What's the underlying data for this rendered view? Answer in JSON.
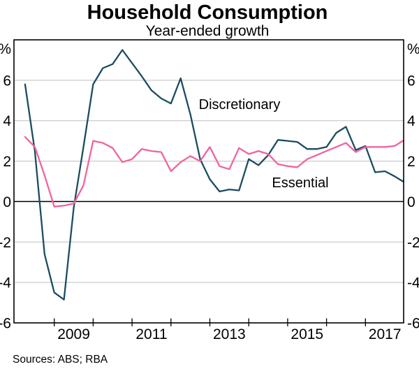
{
  "title": "Household Consumption",
  "subtitle": "Year-ended growth",
  "source_note": "Sources: ABS; RBA",
  "chart_data": {
    "type": "line",
    "x_start_year": 2008,
    "x_period": "quarterly",
    "x_axis": {
      "tick_years": [
        2009,
        2010,
        2011,
        2012,
        2013,
        2014,
        2015,
        2016,
        2017
      ],
      "label_years": [
        2009,
        2011,
        2013,
        2015,
        2017
      ],
      "range_years": [
        2007.95,
        2018.0
      ]
    },
    "y_axis": {
      "unit": "%",
      "ticks": [
        6,
        4,
        2,
        0,
        -2,
        -4,
        -6
      ],
      "range": [
        -6,
        8
      ],
      "grid": true
    },
    "colors": {
      "discretionary": "#1b4c61",
      "essential": "#f0649f",
      "grid": "#bfbfbf",
      "zero_line": "#000000",
      "frame": "#000000"
    },
    "series": [
      {
        "name": "Discretionary",
        "color_key": "discretionary",
        "values": [
          5.8,
          2.5,
          -2.6,
          -4.5,
          -4.85,
          -0.3,
          2.7,
          5.8,
          6.6,
          6.8,
          7.5,
          6.85,
          6.2,
          5.5,
          5.1,
          4.85,
          6.1,
          4.3,
          2.1,
          1.1,
          0.5,
          0.6,
          0.55,
          2.1,
          1.8,
          2.3,
          3.05,
          3.0,
          2.95,
          2.6,
          2.6,
          2.7,
          3.4,
          3.7,
          2.55,
          2.75,
          1.45,
          1.5,
          1.25,
          1.0
        ]
      },
      {
        "name": "Essential",
        "color_key": "essential",
        "values": [
          3.2,
          2.7,
          1.3,
          -0.25,
          -0.2,
          -0.1,
          0.8,
          3.0,
          2.9,
          2.65,
          1.95,
          2.1,
          2.6,
          2.5,
          2.45,
          1.5,
          1.95,
          2.25,
          2.0,
          2.7,
          1.75,
          1.6,
          2.65,
          2.35,
          2.5,
          2.35,
          1.85,
          1.75,
          1.7,
          2.1,
          2.3,
          2.5,
          2.7,
          2.9,
          2.45,
          2.7,
          2.7,
          2.7,
          2.75,
          3.0
        ]
      }
    ]
  }
}
